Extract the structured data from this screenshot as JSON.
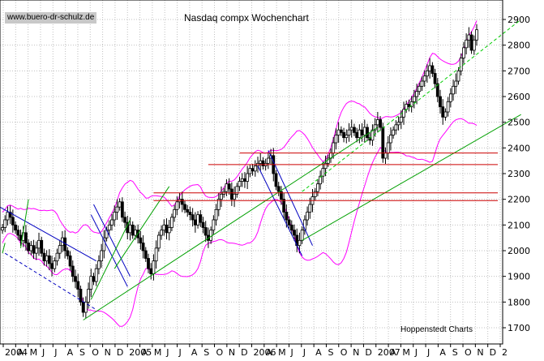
{
  "watermark": "www.buero-dr-schulz.de",
  "source_label": "Hoppenstedt Charts",
  "colors": {
    "candle": "#000000",
    "bollinger": "#ff00ff",
    "trend_channel": "#00a000",
    "trend_dashed": "#00cc00",
    "downtrend": "#0000c0",
    "support_resistance": "#cc0000",
    "grid": "#c0c0c0"
  },
  "chart_data": {
    "type": "candlestick",
    "title": "Nasdaq compx Wochenchart",
    "y_axis_position": "right",
    "ylim": [
      1650,
      2950
    ],
    "y_ticks": [
      1700,
      1800,
      1900,
      2000,
      2100,
      2200,
      2300,
      2400,
      2500,
      2600,
      2700,
      2800,
      2900
    ],
    "grid": true,
    "x_tick_labels": [
      "2004",
      "A",
      "M",
      "J",
      "J",
      "A",
      "S",
      "O",
      "N",
      "D",
      "2005",
      "A",
      "M",
      "J",
      "J",
      "A",
      "S",
      "O",
      "N",
      "D",
      "2006",
      "A",
      "M",
      "J",
      "J",
      "A",
      "S",
      "O",
      "N",
      "D",
      "2007",
      "A",
      "M",
      "J",
      "J",
      "A",
      "S",
      "O",
      "N",
      "D",
      "2"
    ],
    "weekly_close": [
      2090,
      2120,
      2150,
      2130,
      2100,
      2080,
      2060,
      2040,
      2070,
      2030,
      2000,
      2020,
      1990,
      2010,
      2040,
      1990,
      1960,
      1980,
      1950,
      1930,
      1960,
      1990,
      2020,
      2050,
      2000,
      1980,
      1940,
      1900,
      1880,
      1850,
      1800,
      1760,
      1800,
      1850,
      1900,
      1880,
      1930,
      1960,
      2000,
      2050,
      2080,
      2100,
      2120,
      2150,
      2170,
      2190,
      2130,
      2110,
      2070,
      2100,
      2060,
      2080,
      2050,
      2030,
      2000,
      1970,
      1930,
      1910,
      1960,
      2010,
      2060,
      2080,
      2100,
      2070,
      2090,
      2130,
      2160,
      2190,
      2200,
      2180,
      2160,
      2150,
      2140,
      2120,
      2100,
      2140,
      2110,
      2090,
      2060,
      2040,
      2080,
      2120,
      2160,
      2200,
      2220,
      2230,
      2260,
      2240,
      2200,
      2220,
      2250,
      2270,
      2280,
      2270,
      2300,
      2320,
      2310,
      2330,
      2340,
      2350,
      2330,
      2340,
      2360,
      2370,
      2300,
      2250,
      2230,
      2200,
      2150,
      2120,
      2100,
      2080,
      2060,
      2020,
      2040,
      2080,
      2120,
      2150,
      2180,
      2210,
      2230,
      2260,
      2290,
      2320,
      2340,
      2360,
      2380,
      2420,
      2450,
      2470,
      2460,
      2440,
      2450,
      2470,
      2480,
      2460,
      2440,
      2470,
      2450,
      2480,
      2440,
      2430,
      2470,
      2490,
      2510,
      2480,
      2360,
      2380,
      2420,
      2450,
      2470,
      2490,
      2500,
      2520,
      2550,
      2570,
      2560,
      2580,
      2600,
      2620,
      2640,
      2660,
      2680,
      2700,
      2720,
      2690,
      2650,
      2600,
      2560,
      2520,
      2540,
      2580,
      2610,
      2640,
      2660,
      2700,
      2750,
      2790,
      2820,
      2840,
      2780,
      2820,
      2860
    ],
    "support_resistance_levels": [
      2380,
      2335,
      2225,
      2195
    ],
    "annotations": [
      "Hoppenstedt Charts"
    ]
  }
}
